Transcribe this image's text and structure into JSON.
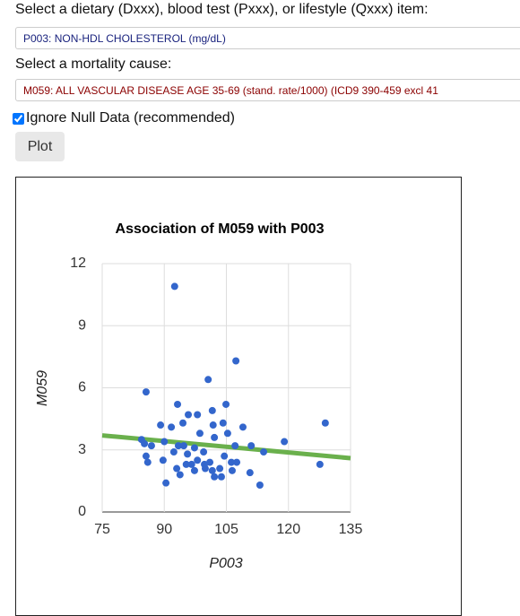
{
  "form": {
    "dietary_label": "Select a dietary (Dxxx), blood test (Pxxx), or lifestyle (Qxxx) item:",
    "dietary_select": "P003: NON-HDL CHOLESTEROL (mg/dL)",
    "mortality_label": "Select a mortality cause:",
    "mortality_select": "M059: ALL VASCULAR DISEASE AGE 35-69 (stand. rate/1000) (ICD9 390-459 excl 41",
    "checkbox_label": "Ignore Null Data (recommended)",
    "button": "Plot"
  },
  "chart_data": {
    "type": "scatter",
    "title": "Association of M059 with P003",
    "x_label": "P003",
    "y_label": "M059",
    "x": [
      92.5,
      107.3,
      100.6,
      85.6,
      93.2,
      104.9,
      101.6,
      95.8,
      98.0,
      94.5,
      89.1,
      101.8,
      104.2,
      128.9,
      91.7,
      109.0,
      98.6,
      105.3,
      102.1,
      84.5,
      85.2,
      86.9,
      90.0,
      93.4,
      94.7,
      107.1,
      111.0,
      119.0,
      97.3,
      95.6,
      99.5,
      92.3,
      104.5,
      85.6,
      114.0,
      86.0,
      89.7,
      95.3,
      96.6,
      98.0,
      99.7,
      101.0,
      106.2,
      107.5,
      127.6,
      93.0,
      97.3,
      99.9,
      101.6,
      103.4,
      106.4,
      110.7,
      93.8,
      102.1,
      103.8,
      90.4,
      113.1
    ],
    "values": [
      10.9,
      7.3,
      6.4,
      5.8,
      5.2,
      5.2,
      4.9,
      4.7,
      4.7,
      4.3,
      4.2,
      4.2,
      4.3,
      4.3,
      4.1,
      4.1,
      3.8,
      3.8,
      3.6,
      3.5,
      3.3,
      3.2,
      3.4,
      3.2,
      3.2,
      3.2,
      3.2,
      3.4,
      3.1,
      2.8,
      2.9,
      2.9,
      2.7,
      2.7,
      2.9,
      2.4,
      2.5,
      2.3,
      2.3,
      2.5,
      2.3,
      2.4,
      2.4,
      2.4,
      2.3,
      2.1,
      2.0,
      2.1,
      2.0,
      2.1,
      2.0,
      1.9,
      1.8,
      1.7,
      1.7,
      1.4,
      1.3
    ],
    "color": "#3366cc",
    "trendline": {
      "x": [
        75,
        135
      ],
      "values": [
        3.7,
        2.6
      ],
      "color": "#6ab04c"
    },
    "xlim": [
      75,
      135
    ],
    "xticks": [
      75,
      90,
      105,
      120,
      135
    ],
    "ylim": [
      0,
      12
    ],
    "yticks": [
      0,
      3,
      6,
      9,
      12
    ],
    "grid": true
  }
}
